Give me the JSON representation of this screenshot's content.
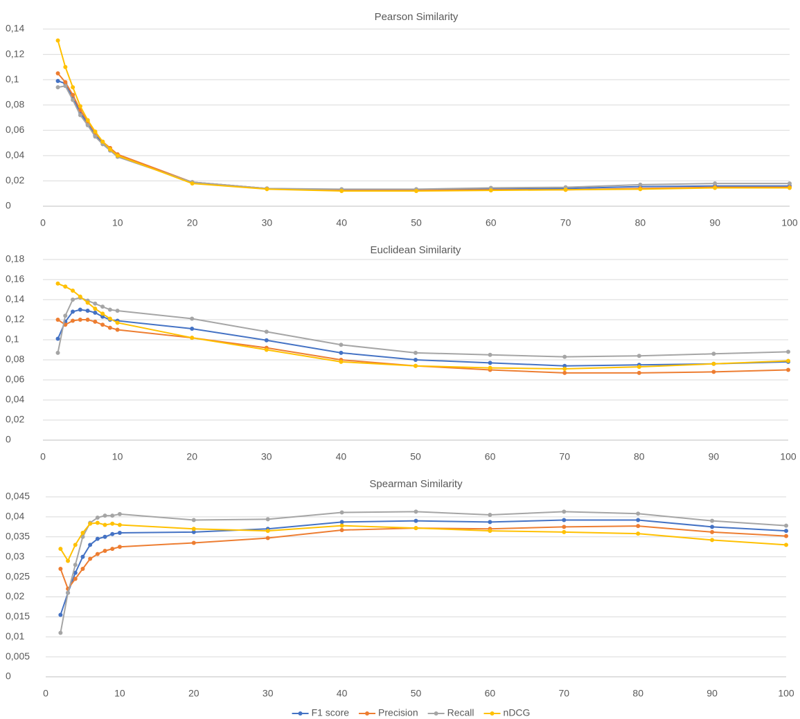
{
  "chart_data": [
    {
      "type": "line",
      "title": "Pearson Similarity",
      "x": [
        2,
        3,
        4,
        5,
        6,
        7,
        8,
        9,
        10,
        20,
        30,
        40,
        50,
        60,
        70,
        80,
        90,
        100
      ],
      "series": [
        {
          "color": "#4472c4",
          "values": [
            0.099,
            0.097,
            0.086,
            0.074,
            0.065,
            0.056,
            0.05,
            0.044,
            0.04,
            0.019,
            0.014,
            0.013,
            0.013,
            0.0135,
            0.014,
            0.0155,
            0.016,
            0.016
          ]
        },
        {
          "color": "#ed7d31",
          "values": [
            0.105,
            0.098,
            0.088,
            0.076,
            0.067,
            0.058,
            0.051,
            0.046,
            0.041,
            0.019,
            0.014,
            0.0125,
            0.0125,
            0.013,
            0.013,
            0.014,
            0.015,
            0.015
          ]
        },
        {
          "color": "#a5a5a5",
          "values": [
            0.094,
            0.095,
            0.084,
            0.072,
            0.064,
            0.055,
            0.049,
            0.044,
            0.039,
            0.019,
            0.014,
            0.0135,
            0.0135,
            0.0145,
            0.015,
            0.017,
            0.018,
            0.018
          ]
        },
        {
          "color": "#ffc000",
          "values": [
            0.131,
            0.11,
            0.094,
            0.079,
            0.068,
            0.059,
            0.051,
            0.045,
            0.04,
            0.018,
            0.0135,
            0.012,
            0.012,
            0.0125,
            0.013,
            0.0135,
            0.0145,
            0.0145
          ]
        }
      ],
      "xlim": [
        0,
        100
      ],
      "xticks": [
        0,
        10,
        20,
        30,
        40,
        50,
        60,
        70,
        80,
        90,
        100
      ],
      "ylim": [
        0,
        0.14
      ],
      "yticks": [
        0,
        {
          "value": 0.02,
          "label": "0,02"
        },
        {
          "value": 0.04,
          "label": "0,04"
        },
        {
          "value": 0.06,
          "label": "0,06"
        },
        {
          "value": 0.08,
          "label": "0,08"
        },
        {
          "value": 0.1,
          "label": "0,1"
        },
        {
          "value": 0.12,
          "label": "0,12"
        },
        {
          "value": 0.14,
          "label": "0,14"
        }
      ],
      "grid": true
    },
    {
      "type": "line",
      "title": "Euclidean Similarity",
      "x": [
        2,
        3,
        4,
        5,
        6,
        7,
        8,
        9,
        10,
        20,
        30,
        40,
        50,
        60,
        70,
        80,
        90,
        100
      ],
      "series": [
        {
          "color": "#4472c4",
          "values": [
            0.101,
            0.118,
            0.128,
            0.13,
            0.129,
            0.127,
            0.123,
            0.12,
            0.119,
            0.111,
            0.0995,
            0.087,
            0.08,
            0.077,
            0.074,
            0.075,
            0.076,
            0.078
          ]
        },
        {
          "color": "#ed7d31",
          "values": [
            0.12,
            0.115,
            0.119,
            0.12,
            0.12,
            0.118,
            0.115,
            0.112,
            0.11,
            0.102,
            0.092,
            0.08,
            0.074,
            0.07,
            0.067,
            0.067,
            0.068,
            0.07
          ]
        },
        {
          "color": "#a5a5a5",
          "values": [
            0.087,
            0.124,
            0.14,
            0.142,
            0.139,
            0.136,
            0.133,
            0.13,
            0.129,
            0.121,
            0.108,
            0.095,
            0.087,
            0.085,
            0.083,
            0.084,
            0.086,
            0.088
          ]
        },
        {
          "color": "#ffc000",
          "values": [
            0.156,
            0.153,
            0.149,
            0.143,
            0.137,
            0.131,
            0.126,
            0.121,
            0.117,
            0.102,
            0.09,
            0.078,
            0.074,
            0.072,
            0.071,
            0.073,
            0.076,
            0.079
          ]
        }
      ],
      "xlim": [
        0,
        100
      ],
      "xticks": [
        0,
        10,
        20,
        30,
        40,
        50,
        60,
        70,
        80,
        90,
        100
      ],
      "ylim": [
        0,
        0.18
      ],
      "yticks": [
        0,
        {
          "value": 0.02,
          "label": "0,02"
        },
        {
          "value": 0.04,
          "label": "0,04"
        },
        {
          "value": 0.06,
          "label": "0,06"
        },
        {
          "value": 0.08,
          "label": "0,08"
        },
        {
          "value": 0.1,
          "label": "0,1"
        },
        {
          "value": 0.12,
          "label": "0,12"
        },
        {
          "value": 0.14,
          "label": "0,14"
        },
        {
          "value": 0.16,
          "label": "0,16"
        },
        {
          "value": 0.18,
          "label": "0,18"
        }
      ],
      "grid": true
    },
    {
      "type": "line",
      "title": "Spearman Similarity",
      "x": [
        2,
        3,
        4,
        5,
        6,
        7,
        8,
        9,
        10,
        20,
        30,
        40,
        50,
        60,
        70,
        80,
        90,
        100
      ],
      "series": [
        {
          "name": "F1 score",
          "color": "#4472c4",
          "values": [
            0.0155,
            0.021,
            0.026,
            0.03,
            0.033,
            0.0345,
            0.035,
            0.0357,
            0.036,
            0.0362,
            0.037,
            0.0387,
            0.039,
            0.0387,
            0.0392,
            0.0392,
            0.0375,
            0.0365
          ]
        },
        {
          "name": "Precision",
          "color": "#ed7d31",
          "values": [
            0.027,
            0.022,
            0.0245,
            0.027,
            0.0295,
            0.0307,
            0.0315,
            0.032,
            0.0325,
            0.0335,
            0.0347,
            0.0367,
            0.0372,
            0.037,
            0.0375,
            0.0377,
            0.0362,
            0.0352
          ]
        },
        {
          "name": "Recall",
          "color": "#a5a5a5",
          "values": [
            0.011,
            0.021,
            0.028,
            0.035,
            0.0385,
            0.0398,
            0.0403,
            0.0403,
            0.0407,
            0.0392,
            0.0394,
            0.0411,
            0.0413,
            0.0405,
            0.0413,
            0.0408,
            0.039,
            0.0378
          ]
        },
        {
          "name": "nDCG",
          "color": "#ffc000",
          "values": [
            0.032,
            0.029,
            0.033,
            0.036,
            0.0383,
            0.0385,
            0.038,
            0.0383,
            0.038,
            0.037,
            0.0365,
            0.0378,
            0.0372,
            0.0365,
            0.0362,
            0.0358,
            0.0342,
            0.033
          ]
        }
      ],
      "xlim": [
        0,
        100
      ],
      "xticks": [
        0,
        10,
        20,
        30,
        40,
        50,
        60,
        70,
        80,
        90,
        100
      ],
      "ylim": [
        0,
        0.045
      ],
      "yticks": [
        0,
        {
          "value": 0.005,
          "label": "0,005"
        },
        {
          "value": 0.01,
          "label": "0,01"
        },
        {
          "value": 0.015,
          "label": "0,015"
        },
        {
          "value": 0.02,
          "label": "0,02"
        },
        {
          "value": 0.025,
          "label": "0,025"
        },
        {
          "value": 0.03,
          "label": "0,03"
        },
        {
          "value": 0.035,
          "label": "0,035"
        },
        {
          "value": 0.04,
          "label": "0,04"
        },
        {
          "value": 0.045,
          "label": "0,045"
        }
      ],
      "grid": true,
      "legend": "bottom"
    }
  ]
}
